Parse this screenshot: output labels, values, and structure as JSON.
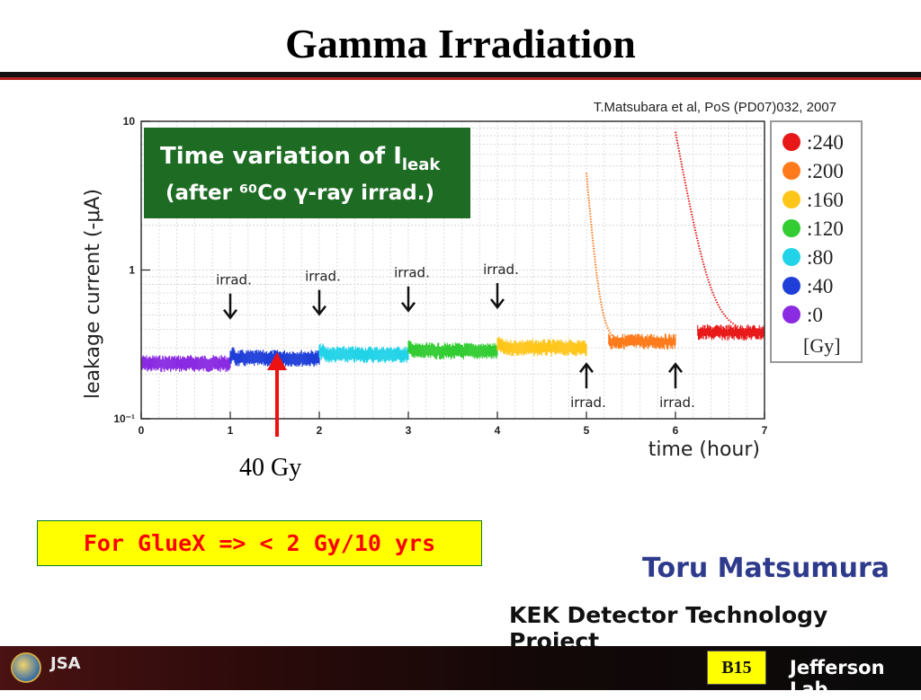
{
  "slide": {
    "title": "Gamma Irradiation",
    "highlight_text": "For GlueX => < 2 Gy/10 yrs",
    "annotation_40gy": "40 Gy",
    "author": "Toru Matsumura",
    "project": "KEK Detector Technology Project",
    "slide_badge": "B15",
    "footer_lab": "Jefferson Lab",
    "footer_logo_text": "JSA"
  },
  "chart_data": {
    "type": "scatter",
    "citation": "T.Matsubara et al, PoS (PD07)032, 2007",
    "inset_title_line1": "Time variation of I",
    "inset_title_sub": "leak",
    "inset_title_line2": "(after ⁶⁰Co γ-ray irrad.)",
    "xlabel": "time (hour)",
    "ylabel": "leakage current (-μA)",
    "xlim": [
      0,
      7
    ],
    "ylim": [
      0.1,
      10
    ],
    "yscale": "log",
    "x_ticks": [
      "0",
      "1",
      "2",
      "3",
      "4",
      "5",
      "6",
      "7"
    ],
    "y_ticks": [
      {
        "value": 10,
        "label": "10"
      },
      {
        "value": 1,
        "label": "1"
      },
      {
        "value": 0.1,
        "label": "10⁻¹"
      }
    ],
    "grid": true,
    "legend_position": "right",
    "legend_unit": "[Gy]",
    "annotations": [
      {
        "text": "irrad.",
        "x": 1,
        "direction": "down"
      },
      {
        "text": "irrad.",
        "x": 2,
        "direction": "down"
      },
      {
        "text": "irrad.",
        "x": 3,
        "direction": "down"
      },
      {
        "text": "irrad.",
        "x": 4,
        "direction": "down"
      },
      {
        "text": "irrad.",
        "x": 5,
        "direction": "up"
      },
      {
        "text": "irrad.",
        "x": 6,
        "direction": "up"
      }
    ],
    "series": [
      {
        "name": ":0",
        "color": "#8a2be2",
        "x_start": 0,
        "x_end": 1,
        "level": 0.235,
        "peak": null
      },
      {
        "name": ":40",
        "color": "#1f3fd8",
        "x_start": 1,
        "x_end": 2,
        "level": 0.255,
        "peak": null
      },
      {
        "name": ":80",
        "color": "#22d3e8",
        "x_start": 2,
        "x_end": 3,
        "level": 0.27,
        "peak": null
      },
      {
        "name": ":120",
        "color": "#33cc33",
        "x_start": 3,
        "x_end": 4,
        "level": 0.285,
        "peak": null
      },
      {
        "name": ":160",
        "color": "#ffc61a",
        "x_start": 4,
        "x_end": 5,
        "level": 0.3,
        "peak": null
      },
      {
        "name": ":200",
        "color": "#ff7a1a",
        "x_start": 5,
        "x_end": 6,
        "level": 0.33,
        "peak": 4.5
      },
      {
        "name": ":240",
        "color": "#e81818",
        "x_start": 6,
        "x_end": 7,
        "level": 0.38,
        "peak": 8.5
      }
    ]
  }
}
